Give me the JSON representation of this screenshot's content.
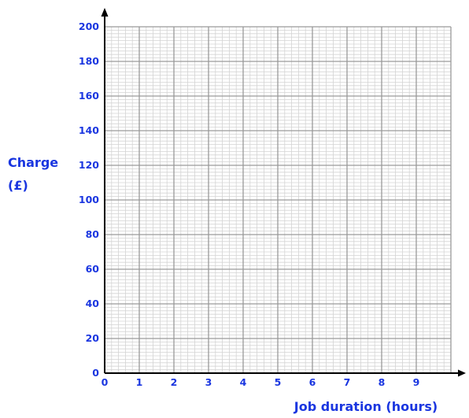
{
  "chart_data": {
    "type": "line",
    "title": "",
    "xlabel": "Job duration (hours)",
    "ylabel_lines": [
      "Charge",
      "(£)"
    ],
    "x_ticks": [
      "0",
      "1",
      "2",
      "3",
      "4",
      "5",
      "6",
      "7",
      "8",
      "9"
    ],
    "y_ticks": [
      "0",
      "20",
      "40",
      "60",
      "80",
      "100",
      "120",
      "140",
      "160",
      "180",
      "200"
    ],
    "xlim": [
      0,
      10
    ],
    "ylim": [
      0,
      200
    ],
    "x_major_step": 1,
    "x_minor_divisions": 5,
    "y_major_step": 20,
    "y_minor_divisions": 10,
    "grid": true,
    "series": []
  },
  "colors": {
    "label": "#1a36e0",
    "major_grid": "#9a9a9a",
    "minor_grid": "#d4d4d4",
    "axis": "#000000"
  }
}
